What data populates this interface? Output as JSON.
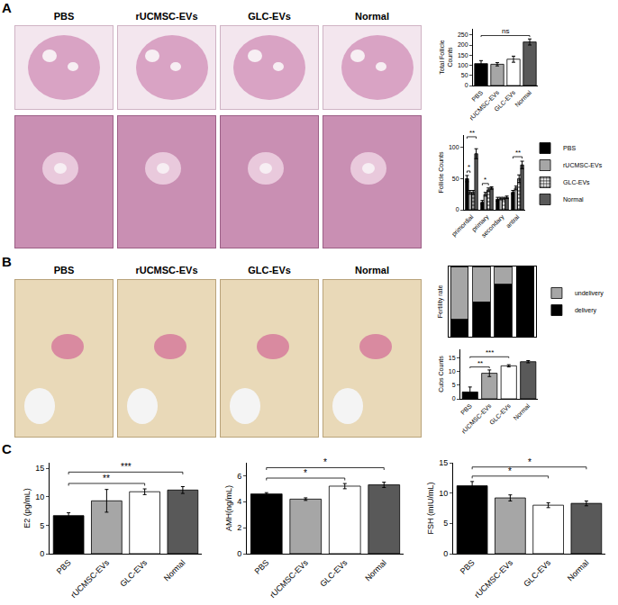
{
  "panels": [
    {
      "letter": "A",
      "image_labels": [
        "PBS",
        "rUCMSC-EVs",
        "GLC-EVs",
        "Normal"
      ]
    },
    {
      "letter": "B",
      "image_labels": [
        "PBS",
        "rUCMSC-EVs",
        "GLC-EVs",
        "Normal"
      ]
    },
    {
      "letter": "C"
    }
  ],
  "chart_data": [
    {
      "type": "bar",
      "y_label": "Total Follicle Counts",
      "categories": [
        "PBS",
        "rUCMSC-EVs",
        "GLC-EVs",
        "Normal"
      ],
      "values": [
        108,
        105,
        130,
        215
      ],
      "errors": [
        15,
        8,
        15,
        15
      ],
      "colors": [
        "#000000",
        "#a6a6a6",
        "#ffffff",
        "#595959"
      ],
      "ylim": [
        0,
        280
      ],
      "yticks": [
        0,
        50,
        100,
        150,
        200,
        250
      ],
      "significance": [
        {
          "from": 0,
          "to": 3,
          "text": "ns"
        }
      ]
    },
    {
      "type": "bar",
      "y_label": "Follicle Counts",
      "categories": [
        "primordial",
        "primary",
        "secondary",
        "antral"
      ],
      "series": [
        {
          "name": "PBS",
          "color": "#000000",
          "values": [
            50,
            12,
            17,
            28
          ],
          "errors": [
            5,
            3,
            3,
            3
          ]
        },
        {
          "name": "rUCMSC-EVs",
          "color": "#a6a6a6",
          "values": [
            28,
            25,
            18,
            35
          ],
          "errors": [
            3,
            3,
            2,
            3
          ]
        },
        {
          "name": "GLC-EVs",
          "color": "#ffffff",
          "values": [
            28,
            32,
            18,
            50
          ],
          "errors": [
            3,
            3,
            2,
            6
          ]
        },
        {
          "name": "Normal",
          "color": "#595959",
          "values": [
            90,
            35,
            20,
            72
          ],
          "errors": [
            8,
            2,
            2,
            6
          ]
        }
      ],
      "legend": "right",
      "ylim": [
        0,
        120
      ],
      "yticks": [
        0,
        50,
        100
      ],
      "significance": [
        {
          "category": 0,
          "from": 0,
          "to": 1,
          "text": "*"
        },
        {
          "category": 0,
          "from": 0,
          "to": 3,
          "text": "**"
        },
        {
          "category": 1,
          "from": 0,
          "to": 2,
          "text": "*"
        },
        {
          "category": 3,
          "from": 0,
          "to": 3,
          "text": "**"
        }
      ]
    },
    {
      "type": "bar",
      "stacked": true,
      "y_label": "Fertility rate",
      "categories": [
        "PBS",
        "rUCMSC-EVs",
        "GLC-EVs",
        "Normal"
      ],
      "series": [
        {
          "name": "delivery",
          "color": "#000000",
          "values": [
            2,
            4,
            6,
            8
          ]
        },
        {
          "name": "undelivery",
          "color": "#a6a6a6",
          "values": [
            6,
            4,
            2,
            0
          ]
        }
      ],
      "legend": "right",
      "ylim": [
        0,
        8
      ],
      "tick_labels": false
    },
    {
      "type": "bar",
      "y_label": "Cubs Counts",
      "categories": [
        "PBS",
        "rUCMSC-EVs",
        "GLC-EVs",
        "Normal"
      ],
      "values": [
        2.5,
        9.3,
        12,
        13.5
      ],
      "errors": [
        1.8,
        1.2,
        0.4,
        0.4
      ],
      "colors": [
        "#000000",
        "#a6a6a6",
        "#ffffff",
        "#595959"
      ],
      "ylim": [
        0,
        18
      ],
      "yticks": [
        0,
        5,
        10,
        15
      ],
      "significance": [
        {
          "from": 0,
          "to": 1,
          "text": "**"
        },
        {
          "from": 0,
          "to": 2,
          "text": "***"
        }
      ]
    },
    {
      "type": "bar",
      "y_label": "E2 (pg/mL)",
      "categories": [
        "PBS",
        "rUCMSC-EVs",
        "GLC-EVs",
        "Normal"
      ],
      "values": [
        6.7,
        9.3,
        10.9,
        11.2
      ],
      "errors": [
        0.5,
        2,
        0.5,
        0.6
      ],
      "colors": [
        "#000000",
        "#a6a6a6",
        "#ffffff",
        "#595959"
      ],
      "ylim": [
        0,
        16
      ],
      "yticks": [
        0,
        5,
        10,
        15
      ],
      "significance": [
        {
          "from": 0,
          "to": 2,
          "text": "**"
        },
        {
          "from": 0,
          "to": 3,
          "text": "***"
        }
      ]
    },
    {
      "type": "bar",
      "y_label": "AMH(ng/mL)",
      "categories": [
        "PBS",
        "rUCMSC-EVs",
        "GLC-EVs",
        "Normal"
      ],
      "values": [
        4.6,
        4.2,
        5.2,
        5.3
      ],
      "errors": [
        0.1,
        0.1,
        0.2,
        0.2
      ],
      "colors": [
        "#000000",
        "#a6a6a6",
        "#ffffff",
        "#595959"
      ],
      "ylim": [
        0,
        7
      ],
      "yticks": [
        0,
        2,
        4,
        6
      ],
      "significance": [
        {
          "from": 0,
          "to": 2,
          "text": "*"
        },
        {
          "from": 0,
          "to": 3,
          "text": "*"
        }
      ]
    },
    {
      "type": "bar",
      "y_label": "FSH (mIU/mL)",
      "categories": [
        "PBS",
        "rUCMSC-EVs",
        "GLC-EVs",
        "Normal"
      ],
      "values": [
        11.2,
        9.2,
        8.0,
        8.3
      ],
      "errors": [
        0.7,
        0.5,
        0.4,
        0.4
      ],
      "colors": [
        "#000000",
        "#a6a6a6",
        "#ffffff",
        "#595959"
      ],
      "ylim": [
        0,
        15
      ],
      "yticks": [
        0,
        5,
        10,
        15
      ],
      "significance": [
        {
          "from": 0,
          "to": 2,
          "text": "*"
        },
        {
          "from": 0,
          "to": 3,
          "text": "*"
        }
      ]
    }
  ]
}
